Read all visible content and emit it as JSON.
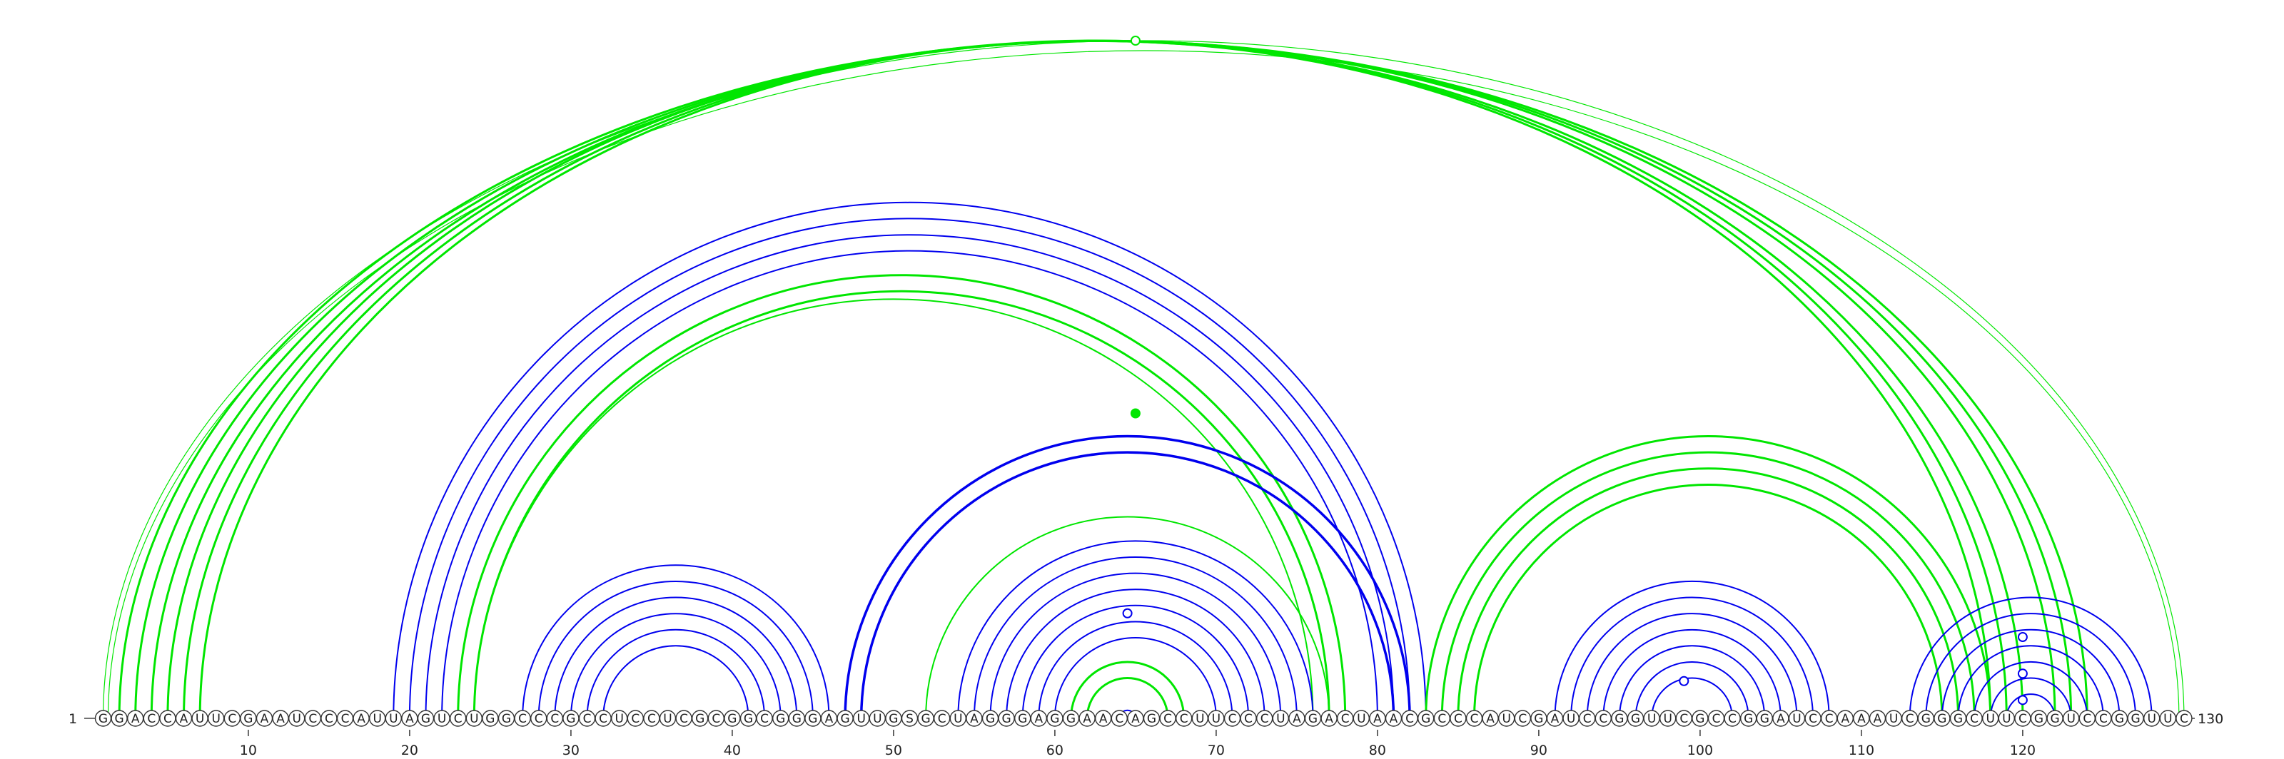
{
  "sequence": "GGACCAUUCGAAUCCCAUUAGUCUGGCCCGCCUCCUCGCGGCGGGAGUUGSGCUAGGGAGGAACAGCCUUCCCUAGACUAACGCCCAUCGAUCCGGUUCGCCGGAUCCAAAUCGGGCUUCGGUCCGGUUC",
  "start_label": "1",
  "end_label": "130",
  "tick_labels": [
    "10",
    "20",
    "30",
    "40",
    "50",
    "60",
    "70",
    "80",
    "90",
    "100",
    "110",
    "120"
  ],
  "tick_positions": [
    10,
    20,
    30,
    40,
    50,
    60,
    70,
    80,
    90,
    100,
    110,
    120
  ],
  "colors": {
    "blue": "#0000ee",
    "green": "#00e600"
  },
  "helices": [
    {
      "i": 1,
      "j": 130,
      "n": 1,
      "color": "green",
      "width": 1.2,
      "double": true
    },
    {
      "i": 2,
      "j": 124,
      "n": 3,
      "color": "green",
      "width": 3.0
    },
    {
      "i": 5,
      "j": 120,
      "n": 3,
      "color": "green",
      "width": 3.0
    },
    {
      "i": 19,
      "j": 83,
      "n": 1,
      "color": "blue",
      "width": 2.0
    },
    {
      "i": 20,
      "j": 82,
      "n": 3,
      "color": "blue",
      "width": 2.0
    },
    {
      "i": 23,
      "j": 78,
      "n": 2,
      "color": "green",
      "width": 3.0
    },
    {
      "i": 24,
      "j": 76,
      "n": 1,
      "color": "green",
      "width": 2.0
    },
    {
      "i": 27,
      "j": 46,
      "n": 6,
      "color": "blue",
      "width": 2.0
    },
    {
      "i": 47,
      "j": 82,
      "n": 2,
      "color": "blue",
      "width": 3.5
    },
    {
      "i": 52,
      "j": 77,
      "n": 1,
      "color": "green",
      "width": 2.0
    },
    {
      "i": 54,
      "j": 76,
      "n": 7,
      "color": "blue",
      "width": 2.0
    },
    {
      "i": 61,
      "j": 68,
      "n": 2,
      "color": "green",
      "width": 3.0
    },
    {
      "i": 64,
      "j": 65,
      "n": 1,
      "color": "blue",
      "width": 2.0
    },
    {
      "i": 83,
      "j": 118,
      "n": 4,
      "color": "green",
      "width": 3.0
    },
    {
      "i": 91,
      "j": 108,
      "n": 7,
      "color": "blue",
      "width": 2.0
    },
    {
      "i": 113,
      "j": 128,
      "n": 7,
      "color": "blue",
      "width": 2.0
    }
  ],
  "markers": [
    {
      "pos": 65.0,
      "lvl": 1.0,
      "color": "green",
      "filled": false
    },
    {
      "pos": 65.0,
      "lvl": 0.45,
      "color": "green",
      "filled": true
    },
    {
      "pos": 64.5,
      "lvl": 0.155,
      "color": "blue",
      "filled": false
    },
    {
      "pos": 99.0,
      "lvl": 0.055,
      "color": "blue",
      "filled": false
    },
    {
      "pos": 120.0,
      "lvl": 0.12,
      "color": "blue",
      "filled": false
    },
    {
      "pos": 120.0,
      "lvl": 0.066,
      "color": "blue",
      "filled": false
    },
    {
      "pos": 120.0,
      "lvl": 0.027,
      "color": "blue",
      "filled": false
    }
  ]
}
